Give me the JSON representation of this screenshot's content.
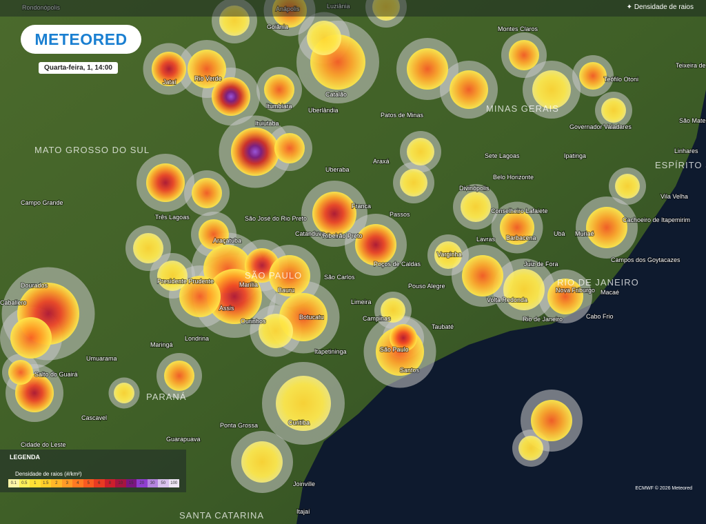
{
  "header": {
    "logo": "METEORED",
    "datetime": "Quarta-feira, 1, 14:00"
  },
  "layer_button": "Densidade de raios",
  "cities": [
    "Rondonópolis",
    "Anápolis",
    "Luziânia",
    "Goiânia",
    "Montes Claros",
    "Teixeira de Freitas",
    "Jataí",
    "Rio Verde",
    "Itumbiara",
    "Catalão",
    "Patos de Minas",
    "Teófilo Otoni",
    "Governador Valadares",
    "São Mateus",
    "Ituiutaba",
    "Uberlândia",
    "Araxá",
    "Uberaba",
    "Sete Lagoas",
    "Ipatinga",
    "Linhares",
    "Belo Horizonte",
    "Divinópolis",
    "Campo Grande",
    "Três Lagoas",
    "São José do Rio Preto",
    "Franca",
    "Passos",
    "Conselheiro Lafaiete",
    "Vila Velha",
    "Cachoeiro de Itapemirim",
    "Araçatuba",
    "Catanduva",
    "Ribeirão Preto",
    "Ubá",
    "Muriaé",
    "Lavras",
    "Barbacena",
    "Varginha",
    "Poços de Caldas",
    "Campos dos Goytacazes",
    "Presidente Prudente",
    "Marília",
    "Bauru",
    "São Carlos",
    "Juiz de Fora",
    "Dourados",
    "Pouso Alegre",
    "Nova Friburgo",
    "Macaé",
    "Assis",
    "Limeira",
    "Volta Redonda",
    "Caballero",
    "Ourinhos",
    "Botucatu",
    "Campinas",
    "Taubaté",
    "Rio de Janeiro",
    "Cabo Frio",
    "Londrina",
    "Maringá",
    "Umuarama",
    "Itapetininga",
    "São Paulo",
    "Santos",
    "Salto do Guairá",
    "Cascavel",
    "Ponta Grossa",
    "Curitiba",
    "Guarapuava",
    "Cidade do Leste",
    "Joinville",
    "Itajaí"
  ],
  "states": [
    "MATO GROSSO DO SUL",
    "MINAS GERAIS",
    "SÃO PAULO",
    "RIO DE JANEIRO",
    "ESPÍRITO SANTO",
    "PARANÁ",
    "SANTA CATARINA"
  ],
  "legend": {
    "heading": "LEGENDA",
    "title": "Densidade de raios (#/km²)",
    "scale": [
      "0.1",
      "0.5",
      "1",
      "1.5",
      "2",
      "3",
      "4",
      "5",
      "6",
      "8",
      "10",
      "15",
      "20",
      "30",
      "50",
      "100"
    ],
    "colors": [
      "#fff7a8",
      "#fff05a",
      "#ffe135",
      "#ffcf2a",
      "#ffb728",
      "#ff9a26",
      "#ff7a22",
      "#f85a20",
      "#e83a22",
      "#cc1f2c",
      "#a61540",
      "#7a1680",
      "#8f3ed0",
      "#b584e0",
      "#d9c2ee",
      "#efe6f7"
    ]
  },
  "credit": "ECMWF © 2026 Meteored"
}
